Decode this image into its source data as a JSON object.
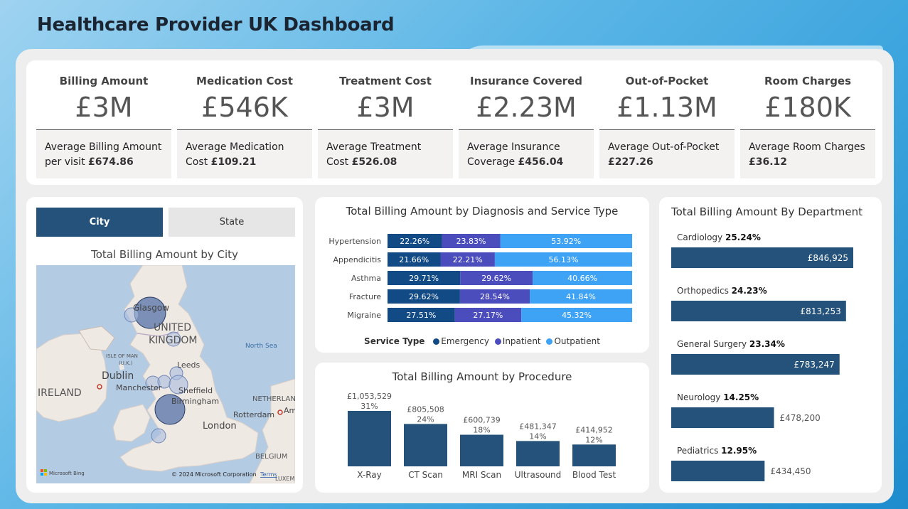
{
  "dashboard": {
    "title": "Healthcare Provider UK Dashboard"
  },
  "kpis": [
    {
      "label": "Billing Amount",
      "value": "£3M",
      "sub_text": "Average Billing Amount per visit",
      "sub_value": "£674.86"
    },
    {
      "label": "Medication Cost",
      "value": "£546K",
      "sub_text": "Average Medication Cost",
      "sub_value": "£109.21"
    },
    {
      "label": "Treatment Cost",
      "value": "£3M",
      "sub_text": "Average Treatment Cost",
      "sub_value": "£526.08"
    },
    {
      "label": "Insurance Covered",
      "value": "£2.23M",
      "sub_text": "Average Insurance Coverage",
      "sub_value": "£456.04"
    },
    {
      "label": "Out-of-Pocket",
      "value": "£1.13M",
      "sub_text": "Average Out-of-Pocket",
      "sub_value": "£227.26"
    },
    {
      "label": "Room Charges",
      "value": "£180K",
      "sub_text": "Average Room Charges",
      "sub_value": "£36.12"
    }
  ],
  "map_panel": {
    "buttons": {
      "city": "City",
      "state": "State"
    },
    "title": "Total Billing Amount by City",
    "labels": {
      "glasgow": "Glasgow",
      "uk": "UNITED",
      "uk2": "KINGDOM",
      "north_sea": "North Sea",
      "isle_of_man": "ISLE OF MAN",
      "uk_abbr": "(U.K.)",
      "dublin": "Dublin",
      "ireland": "IRELAND",
      "manchester": "Manchester",
      "leeds": "Leeds",
      "sheffield": "Sheffield",
      "birmingham": "Birmingham",
      "london": "London",
      "netherlands": "NETHERLAND",
      "rotterdam": "Rotterdam",
      "am": "Am",
      "belgium": "BELGIUM",
      "luxem": "LUXEM",
      "bing": "Microsoft Bing",
      "copyright": "© 2024 Microsoft Corporation",
      "terms": "Terms"
    },
    "colors": {
      "bubble": "#5470a8",
      "land": "#efe9e4",
      "water": "#b4cbe4"
    }
  },
  "diagnosis_chart": {
    "title": "Total Billing Amount by Diagnosis and Service Type",
    "legend_title": "Service Type",
    "colors": {
      "Emergency": "#114a85",
      "Inpatient": "#4b4dbd",
      "Outpatient": "#3ea2f5"
    }
  },
  "procedure_chart": {
    "title": "Total Billing Amount by Procedure",
    "bar_color": "#24527a"
  },
  "department_chart": {
    "title": "Total Billing Amount By Department",
    "bar_color": "#24527a"
  },
  "chart_data": [
    {
      "type": "bar",
      "orientation": "horizontal",
      "stacked": "100%",
      "title": "Total Billing Amount by Diagnosis and Service Type",
      "categories": [
        "Hypertension",
        "Appendicitis",
        "Asthma",
        "Fracture",
        "Migraine"
      ],
      "series": [
        {
          "name": "Emergency",
          "values": [
            22.26,
            21.66,
            29.71,
            29.62,
            27.51
          ]
        },
        {
          "name": "Inpatient",
          "values": [
            23.83,
            22.21,
            29.62,
            28.54,
            27.17
          ]
        },
        {
          "name": "Outpatient",
          "values": [
            53.92,
            56.13,
            40.66,
            41.84,
            45.32
          ]
        }
      ],
      "labels": [
        [
          "22.26%",
          "23.83%",
          "53.92%"
        ],
        [
          "21.66%",
          "22.21%",
          "56.13%"
        ],
        [
          "29.71%",
          "29.62%",
          "40.66%"
        ],
        [
          "29.62%",
          "28.54%",
          "41.84%"
        ],
        [
          "27.51%",
          "27.17%",
          "45.32%"
        ]
      ],
      "legend": "bottom"
    },
    {
      "type": "bar",
      "title": "Total Billing Amount by Procedure",
      "categories": [
        "X-Ray",
        "CT Scan",
        "MRI Scan",
        "Ultrasound",
        "Blood Test"
      ],
      "values": [
        1053529,
        805508,
        600739,
        481347,
        414952
      ],
      "value_labels": [
        "£1,053,529",
        "£805,508",
        "£600,739",
        "£481,347",
        "£414,952"
      ],
      "pct_labels": [
        "31%",
        "24%",
        "18%",
        "14%",
        "12%"
      ]
    },
    {
      "type": "bar",
      "orientation": "horizontal",
      "title": "Total Billing Amount By Department",
      "categories": [
        "Cardiology",
        "Orthopedics",
        "General Surgery",
        "Neurology",
        "Pediatrics"
      ],
      "values": [
        846925,
        813253,
        783247,
        478200,
        434450
      ],
      "value_labels": [
        "£846,925",
        "£813,253",
        "£783,247",
        "£478,200",
        "£434,450"
      ],
      "pct_labels": [
        "25.24%",
        "24.23%",
        "23.34%",
        "14.25%",
        "12.95%"
      ]
    }
  ]
}
